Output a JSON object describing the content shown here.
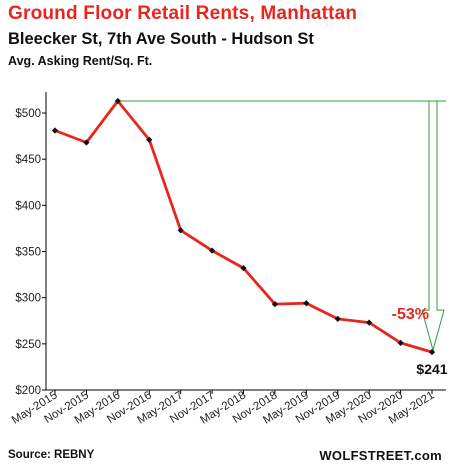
{
  "header": {
    "title": "Ground  Floor Retail Rents, Manhattan",
    "subtitle": "Bleecker St, 7th Ave South - Hudson St",
    "ylabel": "Avg. Asking Rent/Sq. Ft."
  },
  "footer": {
    "source": "Source: REBNY",
    "credit": "WOLFSTREET.com"
  },
  "colors": {
    "line": "#e8261e",
    "marker": "#111111",
    "annotation": "#2e9e3e",
    "axis": "#000000"
  },
  "chart_data": {
    "type": "line",
    "categories": [
      "May-2015",
      "Nov-2015",
      "May-2016",
      "Nov-2016",
      "May-2017",
      "Nov-2017",
      "May-2018",
      "Nov-2018",
      "May-2019",
      "Nov-2019",
      "May-2020",
      "Nov-2020",
      "May-2021"
    ],
    "values": [
      481,
      468,
      513,
      471,
      373,
      351,
      332,
      293,
      294,
      277,
      273,
      251,
      241
    ],
    "ylim": [
      200,
      525
    ],
    "yticks": [
      200,
      250,
      300,
      350,
      400,
      450,
      500
    ],
    "ytick_labels": [
      "$200",
      "$250",
      "$300",
      "$350",
      "$400",
      "$450",
      "$500"
    ],
    "grid": false,
    "annotations": {
      "change_label": "-53%",
      "last_value_label": "$241"
    }
  }
}
